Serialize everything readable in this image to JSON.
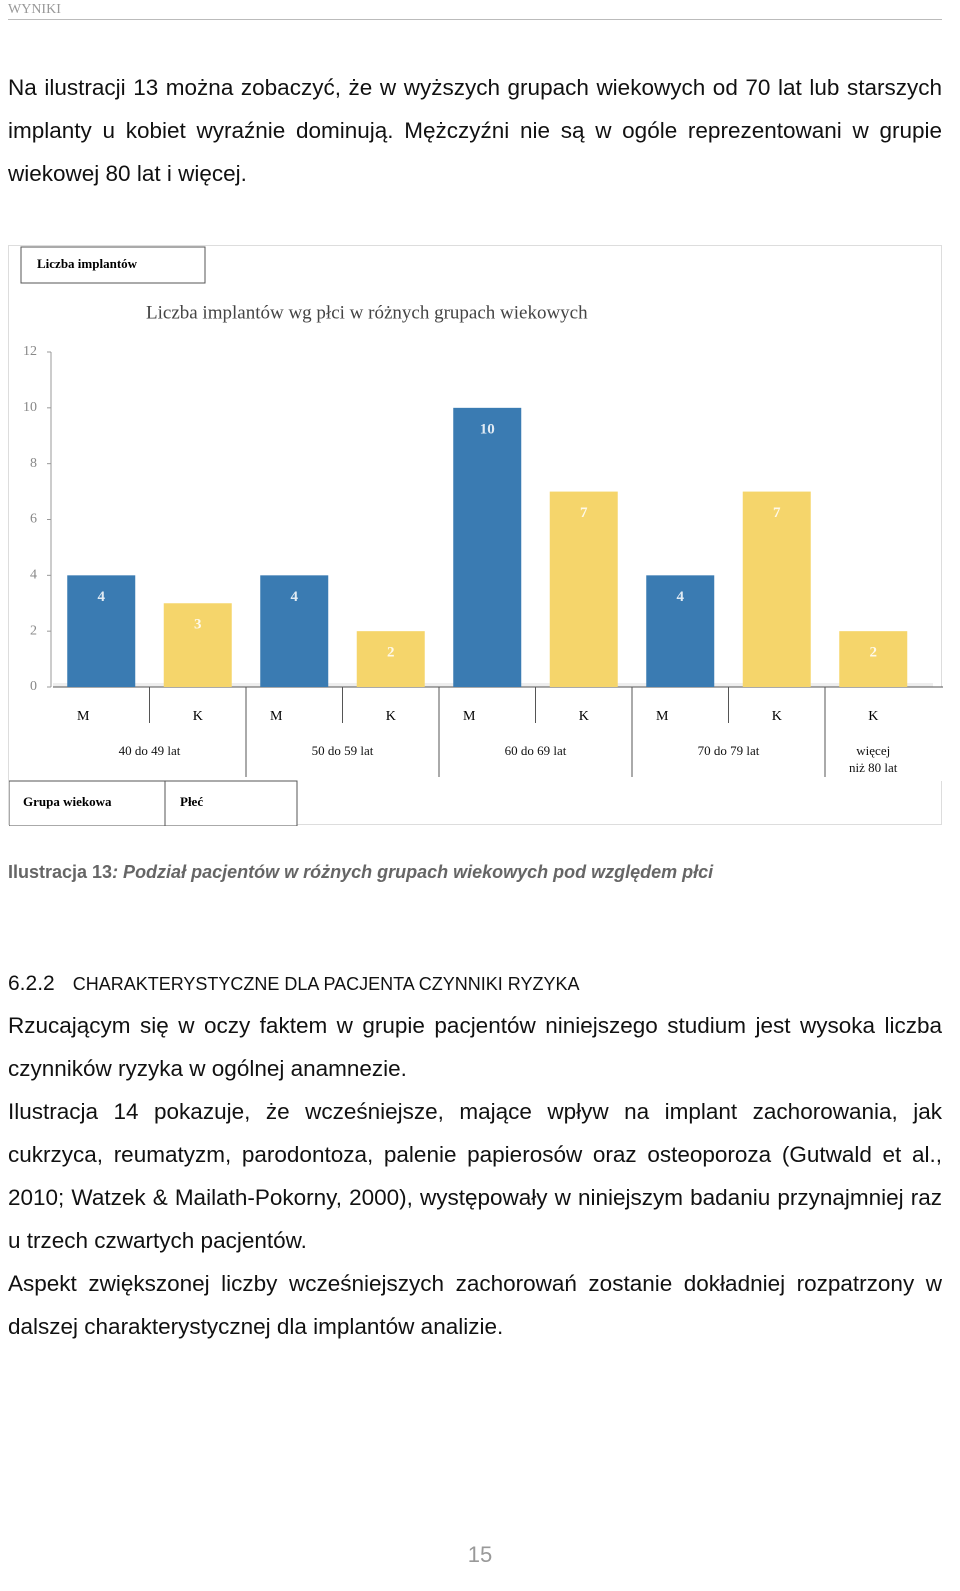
{
  "header": {
    "title": "WYNIKI"
  },
  "intro": "Na ilustracji 13 można zobaczyć, że w wyższych grupach wiekowych od 70 lat lub starszych implanty u kobiet wyraźnie dominują. Mężczyźni nie są w ogóle reprezentowani w grupie wiekowej 80 lat i więcej.",
  "chart_data": {
    "type": "bar",
    "title": "Liczba implantów wg płci w różnych grupach wiekowych",
    "y_field": "Liczba implantów",
    "x_fields": [
      "Grupa wiekowa",
      "Płeć"
    ],
    "groups": [
      {
        "label": "40 do 49 lat",
        "categories": [
          "M",
          "K"
        ],
        "values": [
          4,
          3
        ],
        "colors": [
          "#3a7bb2",
          "#f5d56b"
        ]
      },
      {
        "label": "50 do 59 lat",
        "categories": [
          "M",
          "K"
        ],
        "values": [
          4,
          2
        ],
        "colors": [
          "#3a7bb2",
          "#f5d56b"
        ]
      },
      {
        "label": "60 do 69 lat",
        "categories": [
          "M",
          "K"
        ],
        "values": [
          10,
          7
        ],
        "colors": [
          "#3a7bb2",
          "#f5d56b"
        ]
      },
      {
        "label": "70 do 79 lat",
        "categories": [
          "M",
          "K"
        ],
        "values": [
          4,
          7
        ],
        "colors": [
          "#3a7bb2",
          "#f5d56b"
        ]
      },
      {
        "label": "więcej\nniż 80 lat",
        "categories": [
          "K"
        ],
        "values": [
          2
        ],
        "colors": [
          "#f5d56b"
        ]
      }
    ],
    "ylim": [
      0,
      12
    ],
    "yticks": [
      0,
      2,
      4,
      6,
      8,
      10,
      12
    ]
  },
  "caption": {
    "label": "Ilustracja 13",
    "text": ": Podział pacjentów w różnych grupach wiekowych pod względem płci"
  },
  "section": {
    "number": "6.2.2",
    "title": "CHARAKTERYSTYCZNE DLA PACJENTA CZYNNIKI RYZYKA"
  },
  "paragraphs": [
    "Rzucającym się w oczy faktem w grupie pacjentów niniejszego studium jest wysoka liczba czynników ryzyka w ogólnej anamnezie.",
    "Ilustracja 14 pokazuje, że wcześniejsze, mające wpływ na implant zachorowania, jak cukrzyca, reumatyzm, parodontoza, palenie papierosów oraz osteoporoza (Gutwald et al., 2010; Watzek & Mailath-Pokorny, 2000), występowały w niniejszym badaniu przynajmniej raz u trzech czwartych pacjentów.",
    "Aspekt zwiększonej liczby wcześniejszych zachorowań zostanie dokładniej rozpatrzony w dalszej charakterystycznej dla implantów analizie."
  ],
  "footer": {
    "page": "15"
  }
}
